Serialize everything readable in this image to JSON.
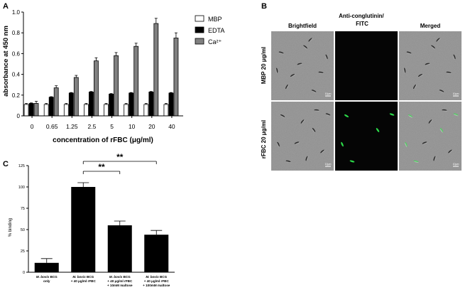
{
  "panels": {
    "a": {
      "label": "A"
    },
    "b": {
      "label": "B"
    },
    "c": {
      "label": "C"
    }
  },
  "chart_data": [
    {
      "id": "A",
      "type": "bar",
      "title": "",
      "xlabel": "concentration of rFBC (μg/ml)",
      "ylabel": "absorbance at 450 nm",
      "ylim": [
        0,
        1.0
      ],
      "yticks": [
        "0",
        "0.2",
        "0.4",
        "0.6",
        "0.8",
        "1.0"
      ],
      "categories": [
        "0",
        "0.65",
        "1.25",
        "2.5",
        "5",
        "10",
        "20",
        "40"
      ],
      "legend_position": "top-right",
      "series": [
        {
          "name": "MBP",
          "color": "#ffffff",
          "values": [
            0.11,
            0.11,
            0.11,
            0.11,
            0.11,
            0.11,
            0.11,
            0.11
          ],
          "errors": [
            0.01,
            0.01,
            0.01,
            0.01,
            0.01,
            0.01,
            0.01,
            0.01
          ]
        },
        {
          "name": "EDTA",
          "color": "#000000",
          "values": [
            0.12,
            0.18,
            0.22,
            0.23,
            0.21,
            0.22,
            0.23,
            0.22
          ],
          "errors": [
            0.005,
            0.005,
            0.005,
            0.005,
            0.005,
            0.005,
            0.005,
            0.005
          ]
        },
        {
          "name": "Ca²⁺",
          "color": "#808080",
          "values": [
            0.12,
            0.27,
            0.37,
            0.53,
            0.58,
            0.67,
            0.89,
            0.75
          ],
          "errors": [
            0.02,
            0.02,
            0.02,
            0.03,
            0.03,
            0.03,
            0.05,
            0.05
          ]
        }
      ]
    },
    {
      "id": "C",
      "type": "bar",
      "title": "",
      "xlabel": "",
      "ylabel": "% binding",
      "ylim": [
        0,
        125
      ],
      "yticks": [
        "0",
        "25",
        "50",
        "75",
        "100",
        "125"
      ],
      "categories": [
        [
          "M. bovis BCG",
          "only"
        ],
        [
          "M. bovis BCG",
          "+ 40 μg/ml rFBC"
        ],
        [
          "M. bovis BCG",
          "+ 40 μg/ml rFBC",
          "+ 10mM maltose"
        ],
        [
          "M. bovis BCG",
          "+ 40 μg/ml rFBC",
          "+ 100mM maltose"
        ]
      ],
      "values": [
        11,
        100,
        55,
        44
      ],
      "errors": [
        5,
        5,
        5,
        5
      ],
      "bar_color": "#000000",
      "annotations": [
        {
          "from": 1,
          "to": 2,
          "text": "**"
        },
        {
          "from": 1,
          "to": 3,
          "text": "**"
        }
      ]
    }
  ],
  "microscopy": {
    "columns": [
      "Brightfield",
      "Anti-conglutinin/ FITC",
      "Merged"
    ],
    "rows": [
      "MBP 20 μg/ml",
      "rFBC 20 μg/ml"
    ],
    "scale_label": "10μm"
  }
}
